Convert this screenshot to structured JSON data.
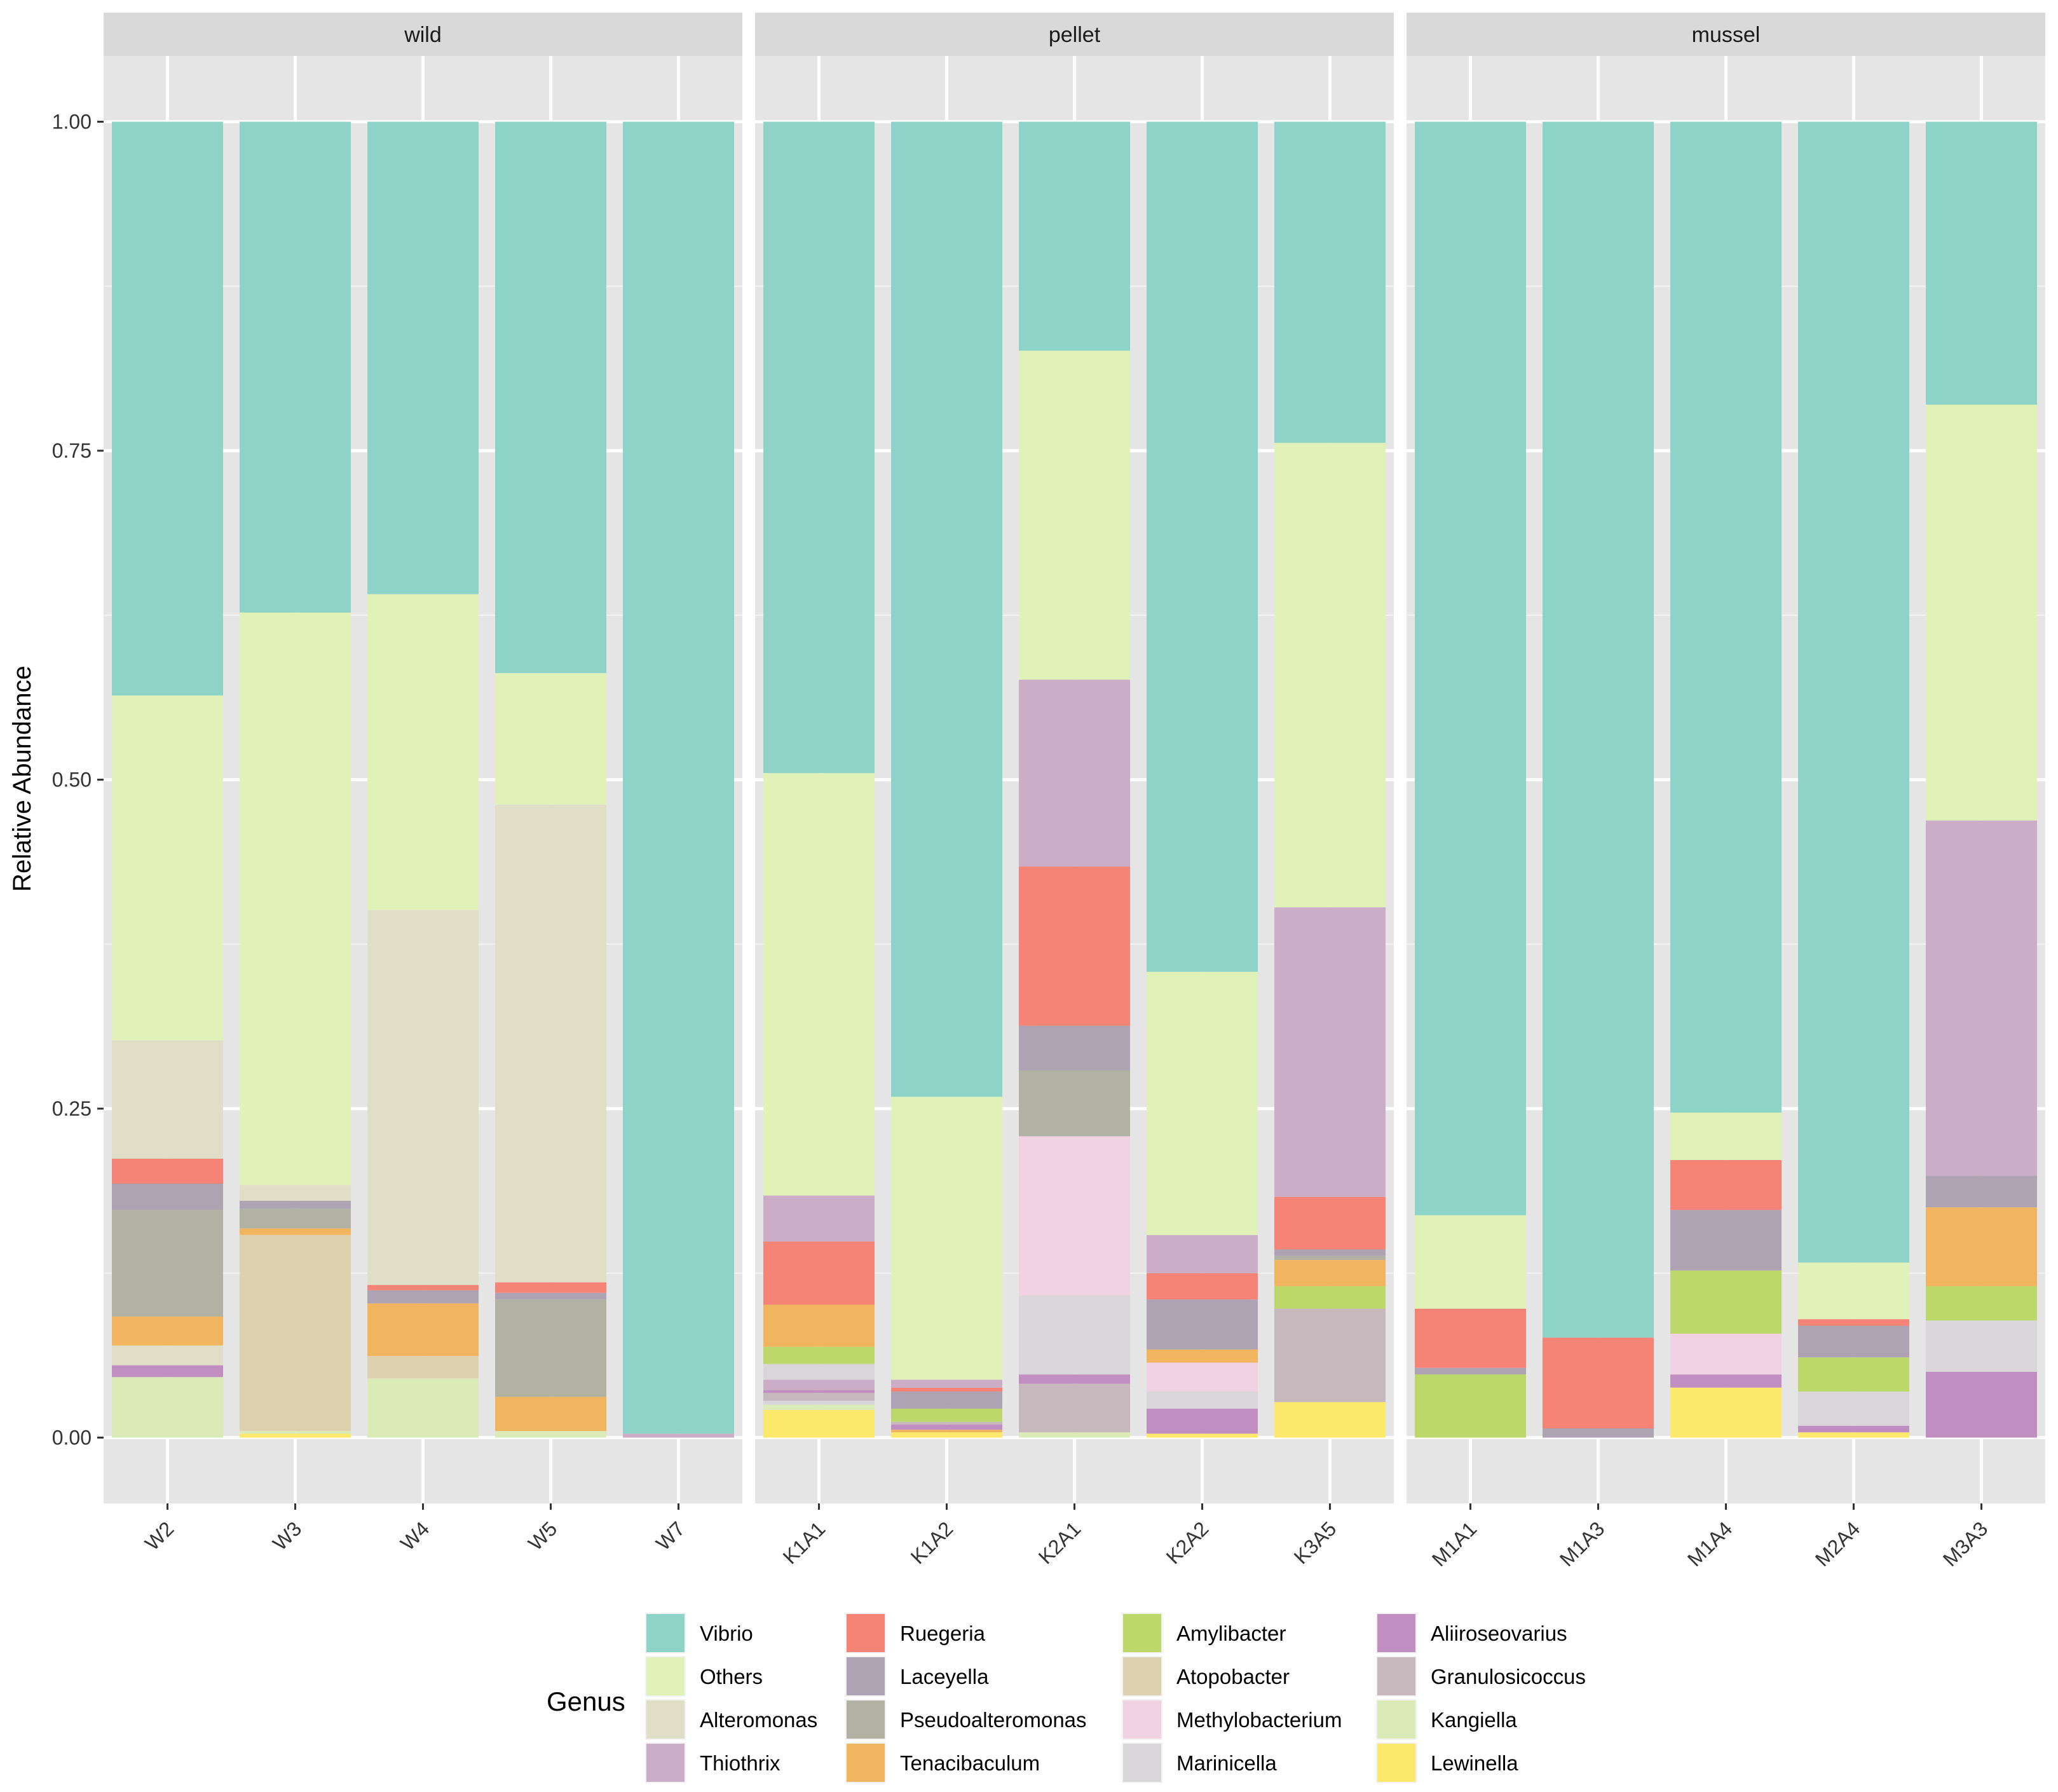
{
  "chart_data": {
    "type": "bar",
    "stacked": true,
    "ylabel": "Relative Abundance",
    "xlabel": "",
    "ylim": [
      -0.05,
      1.05
    ],
    "y_ticks": [
      "0.00",
      "0.25",
      "0.50",
      "0.75",
      "1.00"
    ],
    "legend": {
      "title": "Genus",
      "placement": "bottom",
      "entries": [
        {
          "name": "Vibrio",
          "color": "#8DD3C7"
        },
        {
          "name": "Others",
          "color": "#E0F2B8"
        },
        {
          "name": "Alteromonas",
          "color": "#E1DEC7"
        },
        {
          "name": "Thiothrix",
          "color": "#CCADC8"
        },
        {
          "name": "Ruegeria",
          "color": "#F58376"
        },
        {
          "name": "Laceyella",
          "color": "#AEA3B2"
        },
        {
          "name": "Pseudoalteromonas",
          "color": "#B1B2A3"
        },
        {
          "name": "Tenacibaculum",
          "color": "#F1B55F"
        },
        {
          "name": "Amylibacter",
          "color": "#BDD86A"
        },
        {
          "name": "Atopobacter",
          "color": "#DDD1AF"
        },
        {
          "name": "Methylobacterium",
          "color": "#F0D2E2"
        },
        {
          "name": "Marinicella",
          "color": "#D9D6D9"
        },
        {
          "name": "Aliiroseovarius",
          "color": "#C18EC2"
        },
        {
          "name": "Granulosicoccus",
          "color": "#C6B8BD"
        },
        {
          "name": "Kangiella",
          "color": "#DAEBB7"
        },
        {
          "name": "Lewinella",
          "color": "#FCE86A"
        }
      ]
    },
    "facets": [
      {
        "label": "wild",
        "samples": [
          {
            "name": "W2",
            "stack": [
              [
                "Kangiella",
                0.046
              ],
              [
                "Aliiroseovarius",
                0.009
              ],
              [
                "Alteromonas",
                0.015
              ],
              [
                "Tenacibaculum",
                0.022
              ],
              [
                "Pseudoalteromonas",
                0.081
              ],
              [
                "Laceyella",
                0.02
              ],
              [
                "Ruegeria",
                0.019
              ],
              [
                "Alteromonas",
                0.09
              ],
              [
                "Others",
                0.262
              ],
              [
                "Vibrio",
                0.436
              ]
            ]
          },
          {
            "name": "W3",
            "stack": [
              [
                "Lewinella",
                0.003
              ],
              [
                "Kangiella",
                0.002
              ],
              [
                "Atopobacter",
                0.149
              ],
              [
                "Tenacibaculum",
                0.005
              ],
              [
                "Pseudoalteromonas",
                0.015
              ],
              [
                "Laceyella",
                0.006
              ],
              [
                "Alteromonas",
                0.012
              ],
              [
                "Others",
                0.435
              ],
              [
                "Vibrio",
                0.373
              ]
            ]
          },
          {
            "name": "W4",
            "stack": [
              [
                "Kangiella",
                0.045
              ],
              [
                "Atopobacter",
                0.017
              ],
              [
                "Tenacibaculum",
                0.04
              ],
              [
                "Laceyella",
                0.01
              ],
              [
                "Ruegeria",
                0.004
              ],
              [
                "Alteromonas",
                0.285
              ],
              [
                "Others",
                0.24
              ],
              [
                "Vibrio",
                0.359
              ]
            ]
          },
          {
            "name": "W5",
            "stack": [
              [
                "Kangiella",
                0.005
              ],
              [
                "Tenacibaculum",
                0.026
              ],
              [
                "Pseudoalteromonas",
                0.074
              ],
              [
                "Laceyella",
                0.005
              ],
              [
                "Ruegeria",
                0.008
              ],
              [
                "Alteromonas",
                0.363
              ],
              [
                "Others",
                0.1
              ],
              [
                "Vibrio",
                0.419
              ]
            ]
          },
          {
            "name": "W7",
            "stack": [
              [
                "Thiothrix",
                0.003
              ],
              [
                "Vibrio",
                0.997
              ]
            ]
          }
        ]
      },
      {
        "label": "pellet",
        "samples": [
          {
            "name": "K1A1",
            "stack": [
              [
                "Lewinella",
                0.021
              ],
              [
                "Kangiella",
                0.004
              ],
              [
                "Marinicella",
                0.003
              ],
              [
                "Granulosicoccus",
                0.006
              ],
              [
                "Aliiroseovarius",
                0.002
              ],
              [
                "Thiothrix",
                0.008
              ],
              [
                "Marinicella",
                0.012
              ],
              [
                "Amylibacter",
                0.013
              ],
              [
                "Tenacibaculum",
                0.032
              ],
              [
                "Ruegeria",
                0.048
              ],
              [
                "Thiothrix",
                0.035
              ],
              [
                "Others",
                0.321
              ],
              [
                "Vibrio",
                0.495
              ]
            ]
          },
          {
            "name": "K1A2",
            "stack": [
              [
                "Lewinella",
                0.004
              ],
              [
                "Tenacibaculum",
                0.002
              ],
              [
                "Aliiroseovarius",
                0.004
              ],
              [
                "Granulosicoccus",
                0.002
              ],
              [
                "Amylibacter",
                0.01
              ],
              [
                "Laceyella",
                0.013
              ],
              [
                "Ruegeria",
                0.003
              ],
              [
                "Thiothrix",
                0.006
              ],
              [
                "Others",
                0.215
              ],
              [
                "Vibrio",
                0.741
              ]
            ]
          },
          {
            "name": "K2A1",
            "stack": [
              [
                "Kangiella",
                0.004
              ],
              [
                "Granulosicoccus",
                0.037
              ],
              [
                "Aliiroseovarius",
                0.007
              ],
              [
                "Marinicella",
                0.06
              ],
              [
                "Methylobacterium",
                0.121
              ],
              [
                "Pseudoalteromonas",
                0.05
              ],
              [
                "Laceyella",
                0.034
              ],
              [
                "Ruegeria",
                0.121
              ],
              [
                "Thiothrix",
                0.142
              ],
              [
                "Others",
                0.25
              ],
              [
                "Vibrio",
                0.174
              ]
            ]
          },
          {
            "name": "K2A2",
            "stack": [
              [
                "Lewinella",
                0.003
              ],
              [
                "Aliiroseovarius",
                0.019
              ],
              [
                "Marinicella",
                0.013
              ],
              [
                "Methylobacterium",
                0.022
              ],
              [
                "Tenacibaculum",
                0.01
              ],
              [
                "Laceyella",
                0.038
              ],
              [
                "Ruegeria",
                0.02
              ],
              [
                "Thiothrix",
                0.029
              ],
              [
                "Others",
                0.2
              ],
              [
                "Vibrio",
                0.646
              ]
            ]
          },
          {
            "name": "K3A5",
            "stack": [
              [
                "Lewinella",
                0.027
              ],
              [
                "Granulosicoccus",
                0.071
              ],
              [
                "Amylibacter",
                0.017
              ],
              [
                "Tenacibaculum",
                0.02
              ],
              [
                "Pseudoalteromonas",
                0.003
              ],
              [
                "Laceyella",
                0.005
              ],
              [
                "Ruegeria",
                0.04
              ],
              [
                "Thiothrix",
                0.22
              ],
              [
                "Others",
                0.353
              ],
              [
                "Vibrio",
                0.244
              ]
            ]
          }
        ]
      },
      {
        "label": "mussel",
        "samples": [
          {
            "name": "M1A1",
            "stack": [
              [
                "Amylibacter",
                0.048
              ],
              [
                "Laceyella",
                0.005
              ],
              [
                "Ruegeria",
                0.045
              ],
              [
                "Others",
                0.071
              ],
              [
                "Vibrio",
                0.831
              ]
            ]
          },
          {
            "name": "M1A3",
            "stack": [
              [
                "Laceyella",
                0.007
              ],
              [
                "Ruegeria",
                0.069
              ],
              [
                "Vibrio",
                0.924
              ]
            ]
          },
          {
            "name": "M1A4",
            "stack": [
              [
                "Lewinella",
                0.038
              ],
              [
                "Aliiroseovarius",
                0.01
              ],
              [
                "Methylobacterium",
                0.031
              ],
              [
                "Amylibacter",
                0.048
              ],
              [
                "Laceyella",
                0.046
              ],
              [
                "Ruegeria",
                0.038
              ],
              [
                "Others",
                0.036
              ],
              [
                "Vibrio",
                0.753
              ]
            ]
          },
          {
            "name": "M2A4",
            "stack": [
              [
                "Lewinella",
                0.004
              ],
              [
                "Aliiroseovarius",
                0.005
              ],
              [
                "Marinicella",
                0.026
              ],
              [
                "Amylibacter",
                0.026
              ],
              [
                "Laceyella",
                0.024
              ],
              [
                "Ruegeria",
                0.005
              ],
              [
                "Others",
                0.043
              ],
              [
                "Vibrio",
                0.867
              ]
            ]
          },
          {
            "name": "M3A3",
            "stack": [
              [
                "Aliiroseovarius",
                0.05
              ],
              [
                "Marinicella",
                0.039
              ],
              [
                "Amylibacter",
                0.026
              ],
              [
                "Tenacibaculum",
                0.06
              ],
              [
                "Laceyella",
                0.024
              ],
              [
                "Thiothrix",
                0.27
              ],
              [
                "Others",
                0.316
              ],
              [
                "Vibrio",
                0.215
              ]
            ]
          }
        ]
      }
    ]
  }
}
